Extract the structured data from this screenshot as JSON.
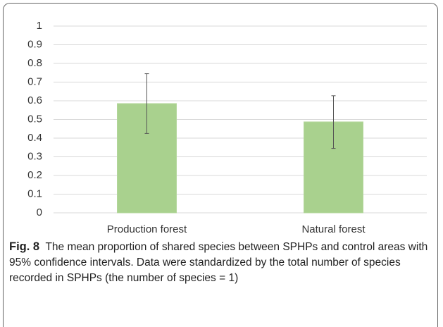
{
  "chart_data": {
    "type": "bar",
    "categories": [
      "Production forest",
      "Natural forest"
    ],
    "values": [
      0.585,
      0.487
    ],
    "ci_lower": [
      0.425,
      0.345
    ],
    "ci_upper": [
      0.745,
      0.627
    ],
    "color": "#a9d18e",
    "ylim": [
      0,
      1
    ],
    "yticks": [
      0,
      0.1,
      0.2,
      0.3,
      0.4,
      0.5,
      0.6,
      0.7,
      0.8,
      0.9,
      1
    ],
    "grid": true
  },
  "caption": {
    "label": "Fig. 8",
    "text": "The mean proportion of shared species between SPHPs and control areas with 95% confidence intervals. Data were standardized by the total number of species recorded in SPHPs (the number of species = 1)"
  }
}
